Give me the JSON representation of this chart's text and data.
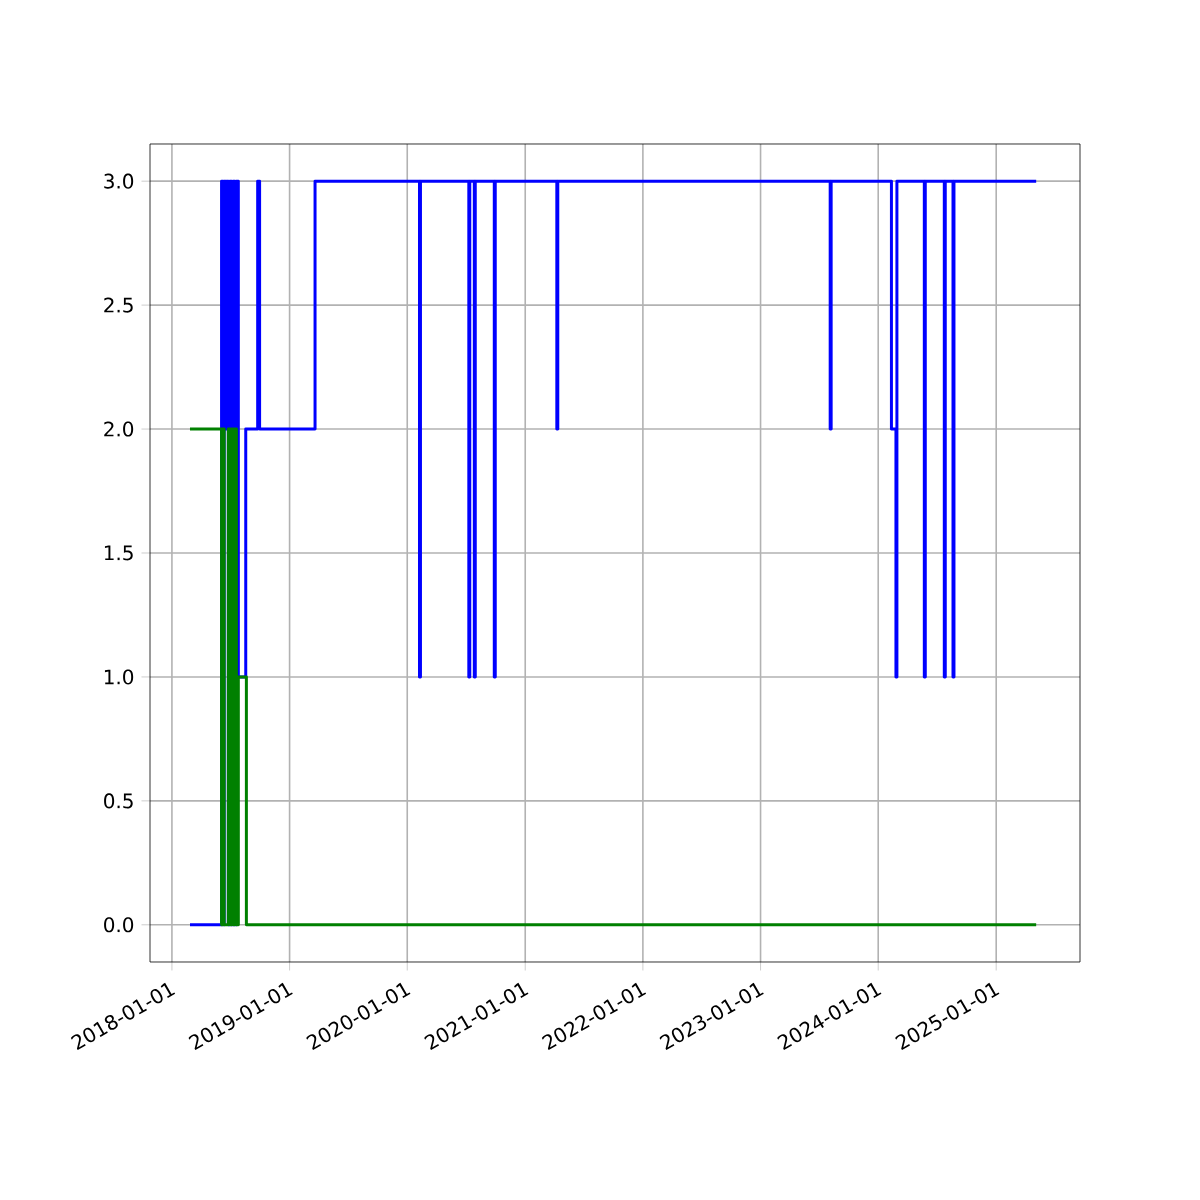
{
  "chart_data": {
    "type": "step",
    "series": [
      {
        "color": "#0000ff",
        "x": [
          "2018-02-26",
          "2018-06-04",
          "2018-06-08",
          "2018-06-12",
          "2018-06-16",
          "2018-06-20",
          "2018-06-25",
          "2018-06-30",
          "2018-07-05",
          "2018-07-10",
          "2018-07-15",
          "2018-07-20",
          "2018-07-26",
          "2018-08-18",
          "2018-09-24",
          "2018-09-30",
          "2019-03-21",
          "2020-02-08",
          "2020-02-11",
          "2020-07-10",
          "2020-07-13",
          "2020-07-27",
          "2020-07-30",
          "2020-09-27",
          "2020-09-30",
          "2021-04-09",
          "2021-04-12",
          "2023-08-05",
          "2023-08-08",
          "2024-02-11",
          "2024-02-25",
          "2024-02-28",
          "2024-05-23",
          "2024-05-26",
          "2024-07-24",
          "2024-07-27",
          "2024-08-20",
          "2024-08-23",
          "2025-05-05"
        ],
        "values": [
          0,
          3,
          0,
          3,
          2,
          3,
          0,
          3,
          0,
          3,
          0,
          3,
          1,
          2,
          3,
          2,
          3,
          1,
          3,
          1,
          3,
          1,
          3,
          1,
          3,
          2,
          3,
          2,
          3,
          2,
          1,
          3,
          1,
          3,
          1,
          3,
          1,
          3,
          3
        ]
      },
      {
        "color": "#008000",
        "x": [
          "2018-02-26",
          "2018-06-04",
          "2018-06-08",
          "2018-06-12",
          "2018-06-25",
          "2018-06-30",
          "2018-07-05",
          "2018-07-10",
          "2018-07-15",
          "2018-07-20",
          "2018-07-26",
          "2018-08-20",
          "2025-05-05"
        ],
        "values": [
          2,
          0,
          2,
          0,
          2,
          0,
          2,
          0,
          2,
          0,
          1,
          0,
          0
        ]
      }
    ],
    "xlim": [
      "2017-10-25",
      "2025-09-18"
    ],
    "xticks": [
      {
        "value": "2018-01-01",
        "label": "2018-01-01"
      },
      {
        "value": "2019-01-01",
        "label": "2019-01-01"
      },
      {
        "value": "2020-01-01",
        "label": "2020-01-01"
      },
      {
        "value": "2021-01-01",
        "label": "2021-01-01"
      },
      {
        "value": "2022-01-01",
        "label": "2022-01-01"
      },
      {
        "value": "2023-01-01",
        "label": "2023-01-01"
      },
      {
        "value": "2024-01-01",
        "label": "2024-01-01"
      },
      {
        "value": "2025-01-01",
        "label": "2025-01-01"
      }
    ],
    "ylim": [
      -0.15,
      3.15
    ],
    "yticks": [
      {
        "value": 0,
        "label": "0.0"
      },
      {
        "value": 0.5,
        "label": "0.5"
      },
      {
        "value": 1,
        "label": "1.0"
      },
      {
        "value": 1.5,
        "label": "1.5"
      },
      {
        "value": 2,
        "label": "2.0"
      },
      {
        "value": 2.5,
        "label": "2.5"
      },
      {
        "value": 3,
        "label": "3.0"
      }
    ],
    "grid": true
  }
}
